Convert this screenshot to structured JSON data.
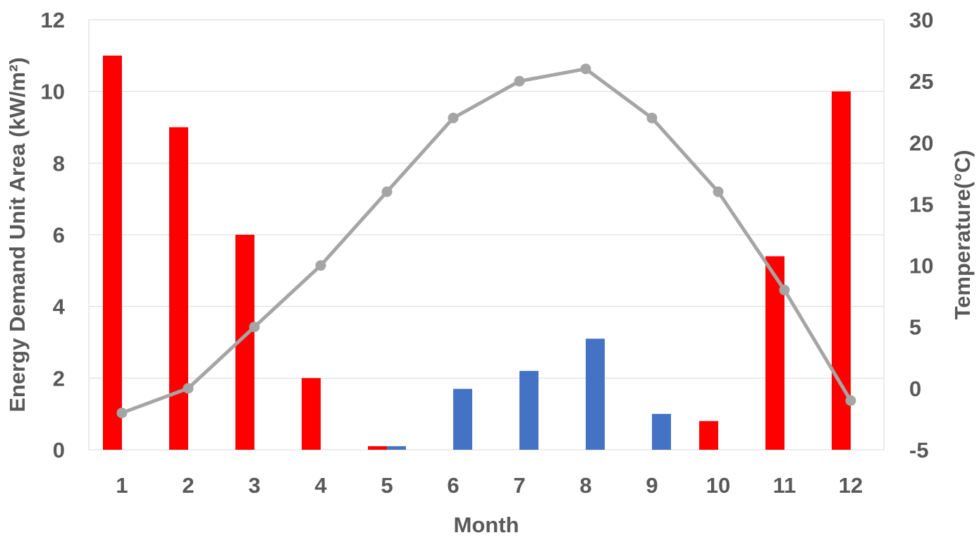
{
  "chart_data": {
    "type": "bar",
    "title": "",
    "xlabel": "Month",
    "ylabel": "Energy Demand Unit Area (kW/m²)",
    "y2label": "Temperature(°C)",
    "categories": [
      "1",
      "2",
      "3",
      "4",
      "5",
      "6",
      "7",
      "8",
      "9",
      "10",
      "11",
      "12"
    ],
    "ylim": [
      0,
      12
    ],
    "y2lim": [
      -5,
      30
    ],
    "yticks": [
      "0",
      "2",
      "4",
      "6",
      "8",
      "10",
      "12"
    ],
    "y2ticks": [
      "-5",
      "0",
      "5",
      "10",
      "15",
      "20",
      "25",
      "30"
    ],
    "grid": true,
    "legend": "none",
    "series": [
      {
        "type": "bar",
        "axis": "left",
        "color": "#ff0000",
        "values": [
          11,
          9,
          6,
          2,
          0.1,
          0,
          0,
          0,
          0,
          0.8,
          5.4,
          10
        ]
      },
      {
        "type": "bar",
        "axis": "left",
        "color": "#4472c4",
        "values": [
          0,
          0,
          0,
          0,
          0.1,
          1.7,
          2.2,
          3.1,
          1.0,
          0,
          0,
          0
        ]
      },
      {
        "type": "line",
        "axis": "right",
        "color": "#a5a5a5",
        "values": [
          -2,
          0,
          5,
          10,
          16,
          22,
          25,
          26,
          22,
          16,
          8,
          -1
        ]
      }
    ]
  }
}
